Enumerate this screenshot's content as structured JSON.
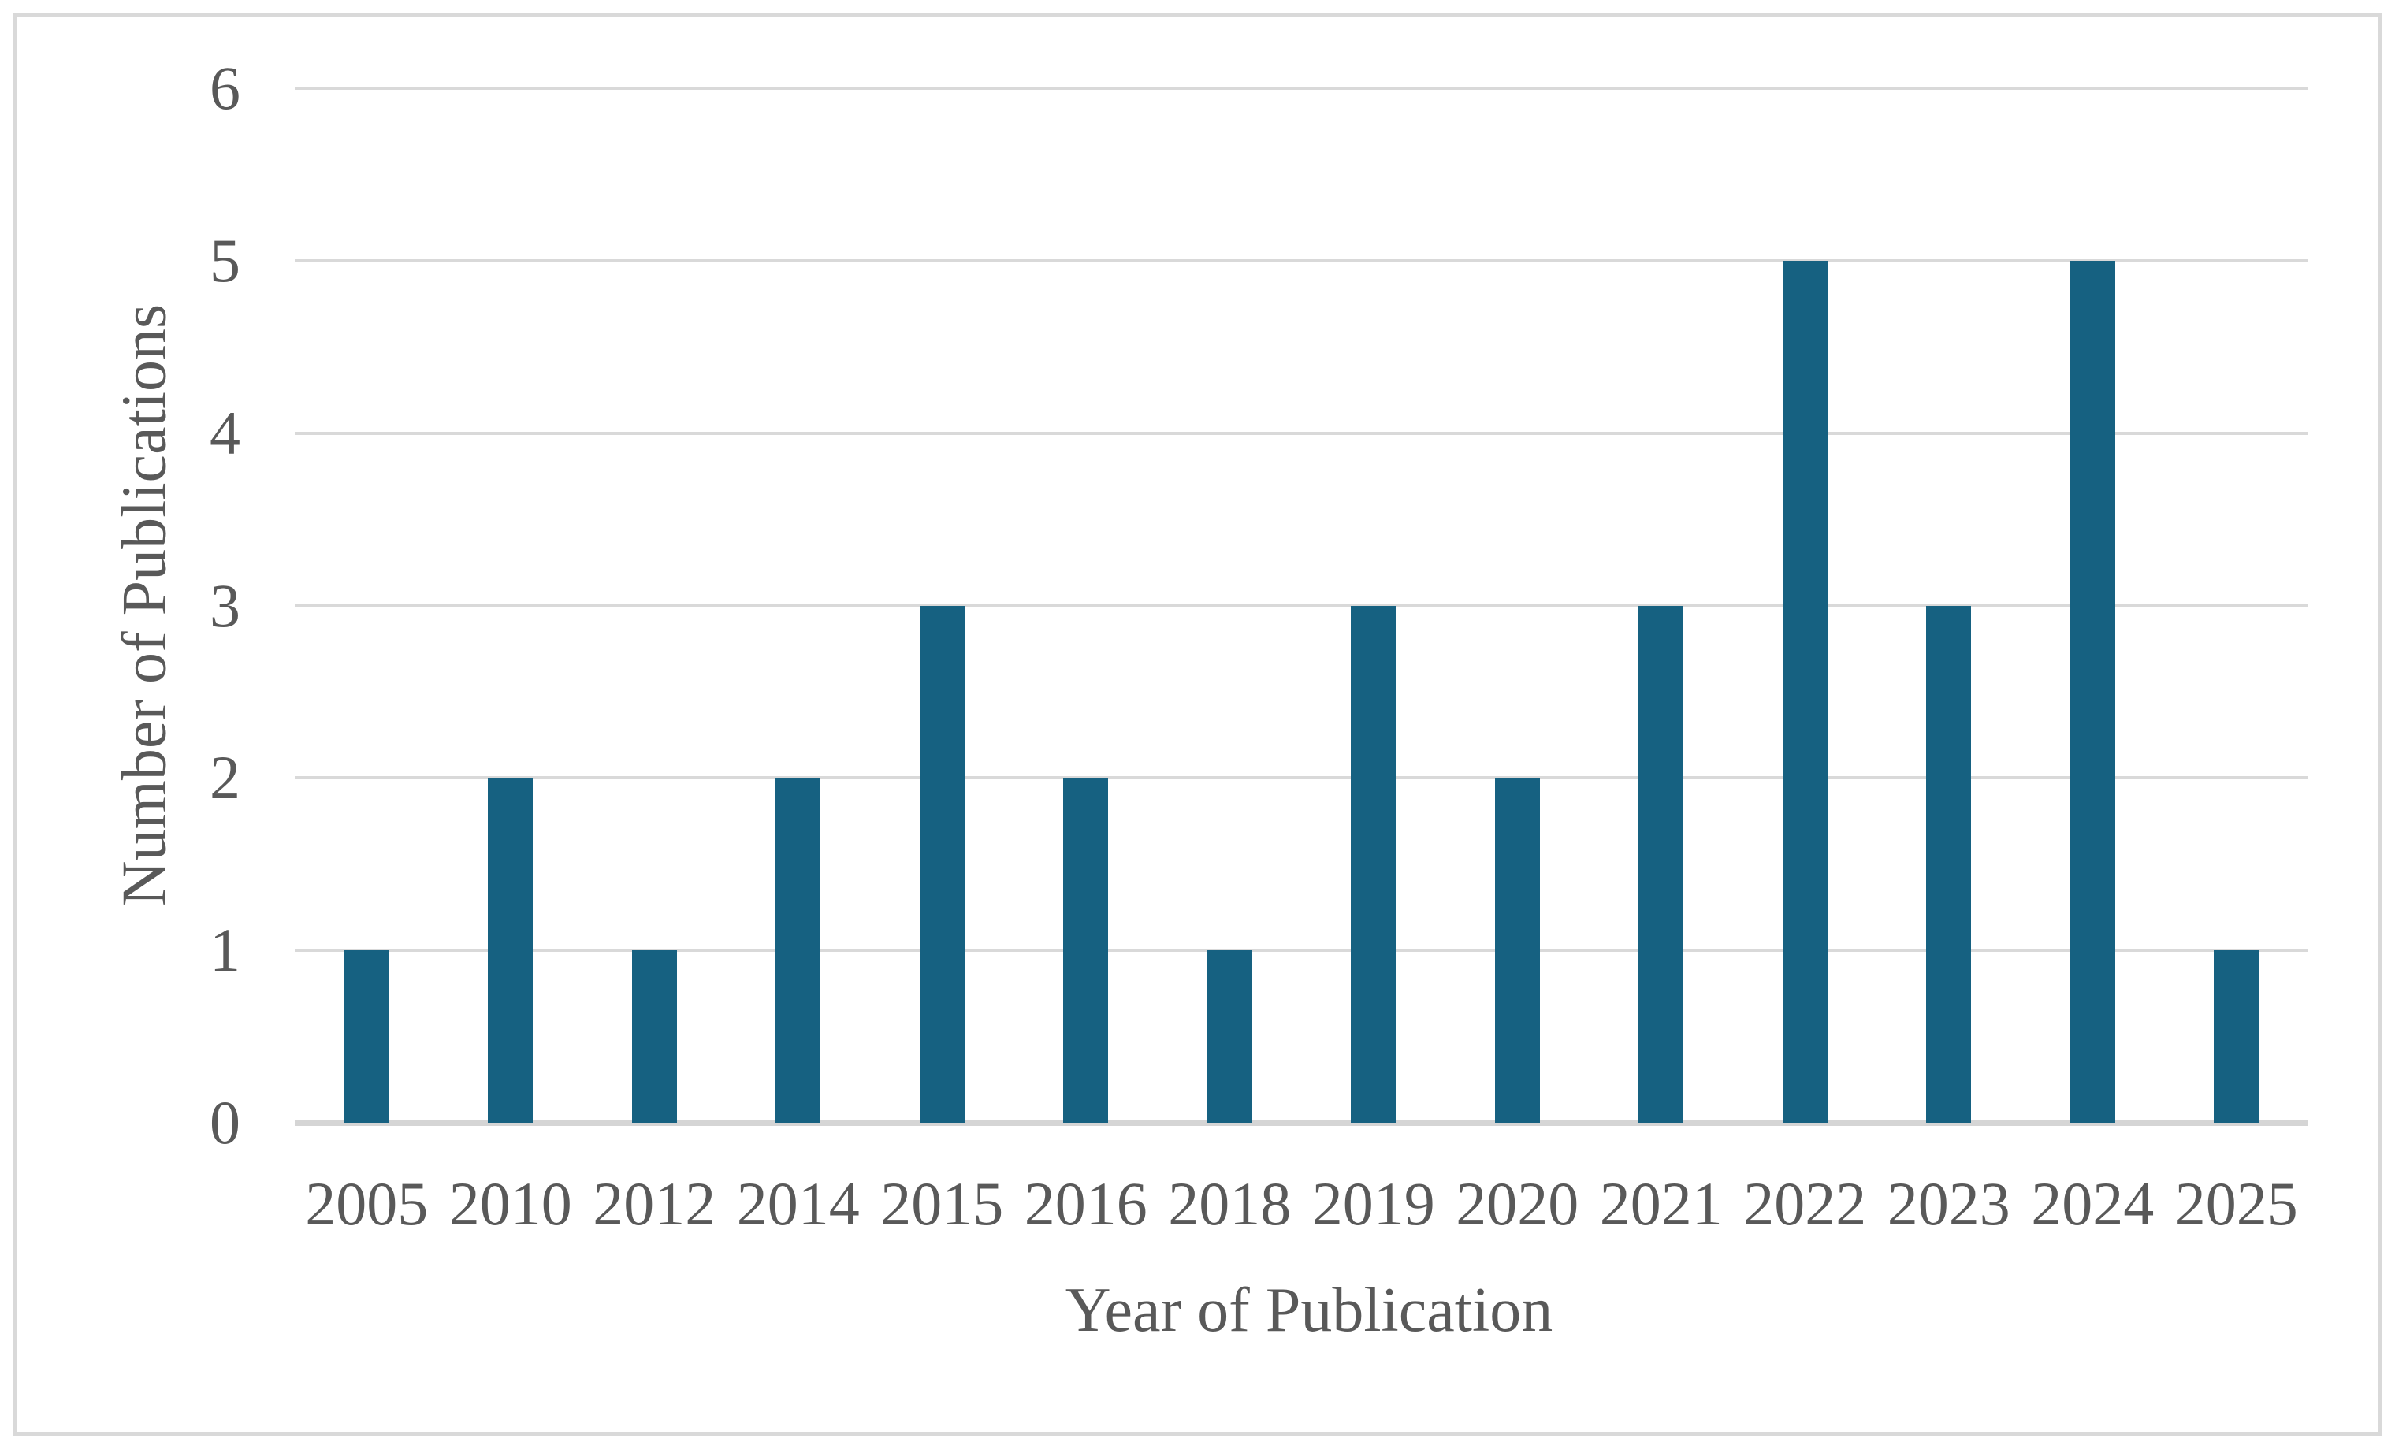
{
  "figure": {
    "background": "#FFFFFF",
    "border_color": "#D9D9D9"
  },
  "chart_data": {
    "type": "bar",
    "title": "",
    "categories": [
      "2005",
      "2010",
      "2012",
      "2014",
      "2015",
      "2016",
      "2018",
      "2019",
      "2020",
      "2021",
      "2022",
      "2023",
      "2024",
      "2025"
    ],
    "values": [
      1,
      2,
      1,
      2,
      3,
      2,
      1,
      3,
      2,
      3,
      5,
      3,
      5,
      1
    ],
    "xlabel": "Year of Publication",
    "ylabel": "Number of Publications",
    "ylim": [
      0,
      6
    ],
    "yticks": [
      0,
      1,
      2,
      3,
      4,
      5,
      6
    ],
    "grid": "horizontal-only",
    "legend": "none",
    "bar_color": "#166181",
    "gridline_color": "#D9D9D9",
    "axis_line_color": "#D5D5D5",
    "text_color": "#595959"
  }
}
